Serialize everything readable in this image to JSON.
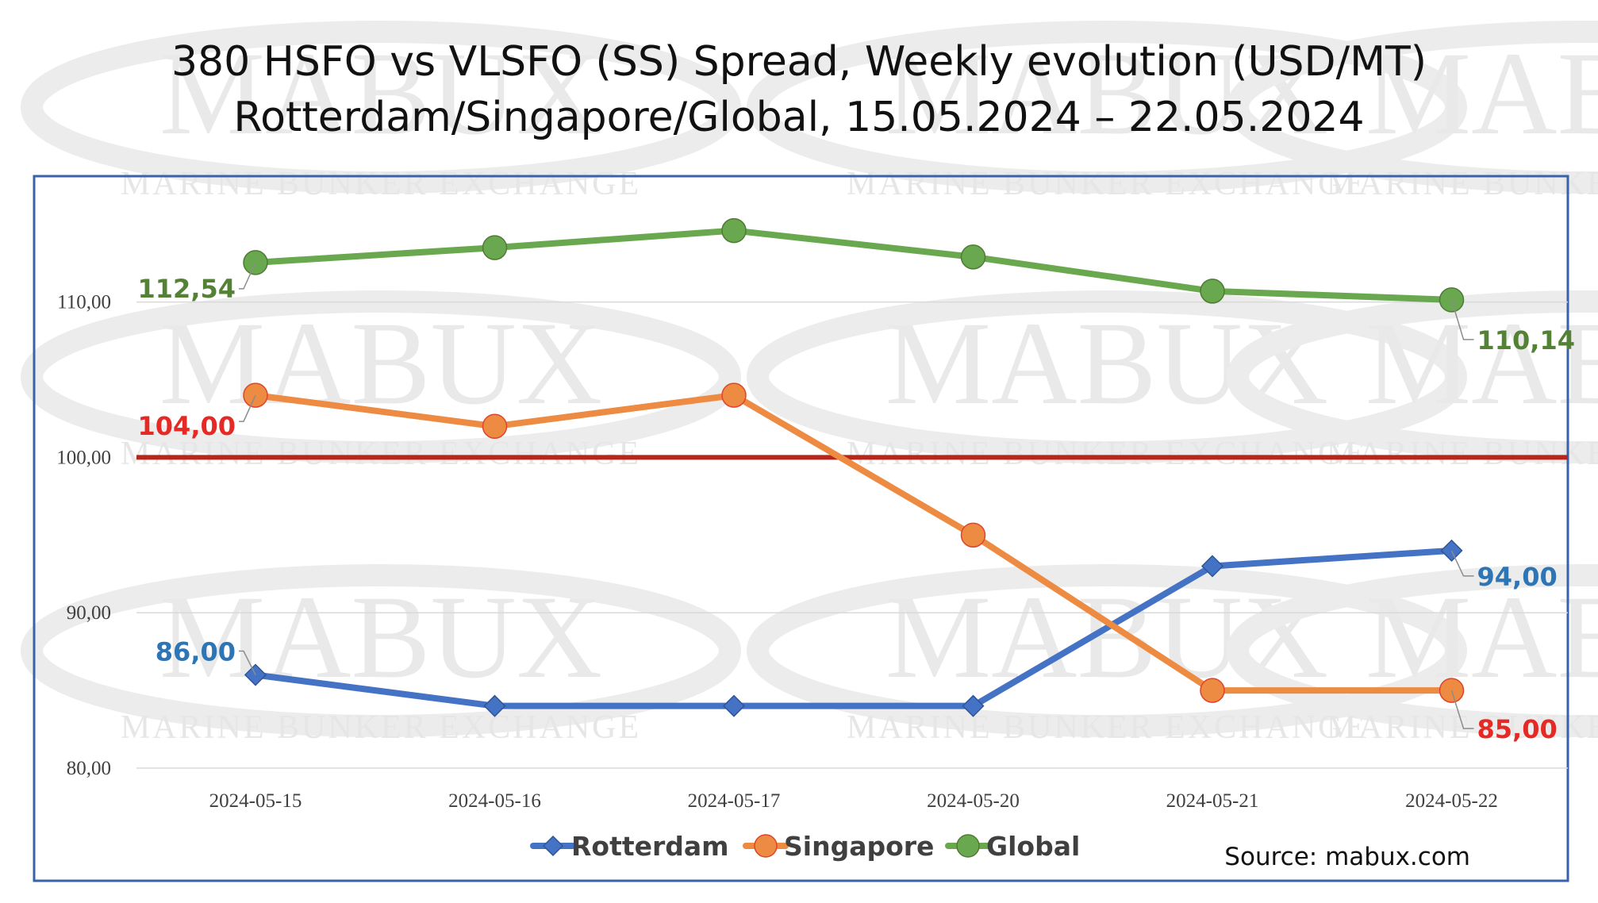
{
  "chart_data": {
    "type": "line",
    "title": "380 HSFO vs VLSFO (SS) Spread, Weekly evolution (USD/MT)",
    "subtitle": "Rotterdam/Singapore/Global, 15.05.2024 – 22.05.2024",
    "categories": [
      "2024-05-15",
      "2024-05-16",
      "2024-05-17",
      "2024-05-20",
      "2024-05-21",
      "2024-05-22"
    ],
    "ylim": [
      80,
      118
    ],
    "yticks": [
      {
        "value": 80,
        "label": "80,00"
      },
      {
        "value": 90,
        "label": "90,00"
      },
      {
        "value": 100,
        "label": "100,00"
      },
      {
        "value": 110,
        "label": "110,00"
      }
    ],
    "grid": true,
    "reference_line": {
      "value": 100,
      "color": "#b5271d"
    },
    "legend_position": "bottom",
    "series": [
      {
        "name": "Rotterdam",
        "values": [
          86,
          84,
          84,
          84,
          93,
          94
        ],
        "color": "#4472c4",
        "marker": "diamond",
        "labels": [
          {
            "index": 0,
            "text": "86,00",
            "side": "left"
          },
          {
            "index": 5,
            "text": "94,00",
            "side": "right"
          }
        ],
        "label_color": "#2e75b6"
      },
      {
        "name": "Singapore",
        "values": [
          104,
          102,
          104,
          95,
          85,
          85
        ],
        "color": "#ed8b42",
        "marker": "circle",
        "labels": [
          {
            "index": 0,
            "text": "104,00",
            "side": "left"
          },
          {
            "index": 5,
            "text": "85,00",
            "side": "right"
          }
        ],
        "label_color": "#e52a25"
      },
      {
        "name": "Global",
        "values": [
          112.54,
          113.5,
          114.6,
          112.9,
          110.7,
          110.14
        ],
        "color": "#6aa84f",
        "marker": "circle",
        "labels": [
          {
            "index": 0,
            "text": "112,54",
            "side": "left"
          },
          {
            "index": 5,
            "text": "110,14",
            "side": "right"
          }
        ],
        "label_color": "#548235"
      }
    ],
    "annotations": [
      "Source: mabux.com"
    ]
  },
  "watermark": {
    "logo_text": "MABUX",
    "tagline": "MARINE BUNKER EXCHANGE"
  }
}
